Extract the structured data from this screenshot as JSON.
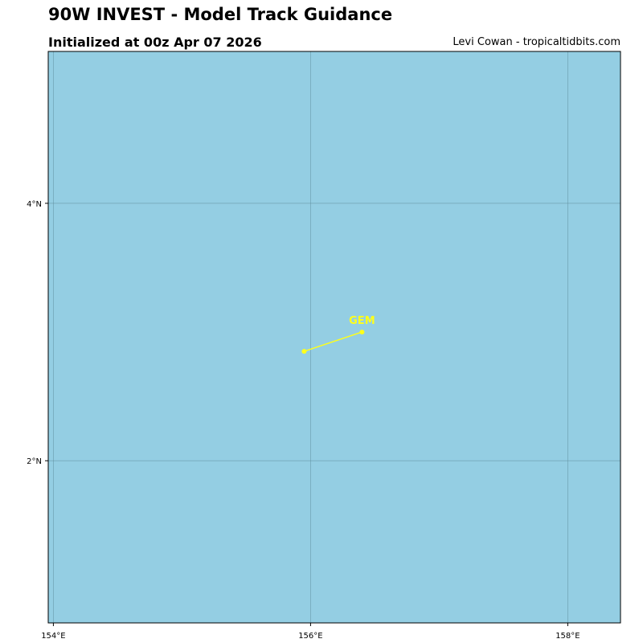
{
  "header": {
    "title": "90W INVEST - Model Track Guidance",
    "subtitle": "Initialized at 00z Apr 07 2026",
    "credit": "Levi Cowan - tropicaltidbits.com"
  },
  "map": {
    "ocean_color": "#94cee3",
    "grid_color": "#5f8f9c",
    "lon_range": [
      153.96,
      158.41
    ],
    "lat_range": [
      0.74,
      5.18
    ],
    "lon_ticks": [
      {
        "value": 154,
        "label": "154°E"
      },
      {
        "value": 156,
        "label": "156°E"
      },
      {
        "value": 158,
        "label": "158°E"
      }
    ],
    "lat_ticks": [
      {
        "value": 4,
        "label": "4°N"
      },
      {
        "value": 2,
        "label": "2°N"
      }
    ]
  },
  "tracks": [
    {
      "model": "GEM",
      "color": "#ffff1a",
      "points": [
        {
          "lon": 155.95,
          "lat": 2.85
        },
        {
          "lon": 156.4,
          "lat": 3.0
        }
      ]
    }
  ]
}
